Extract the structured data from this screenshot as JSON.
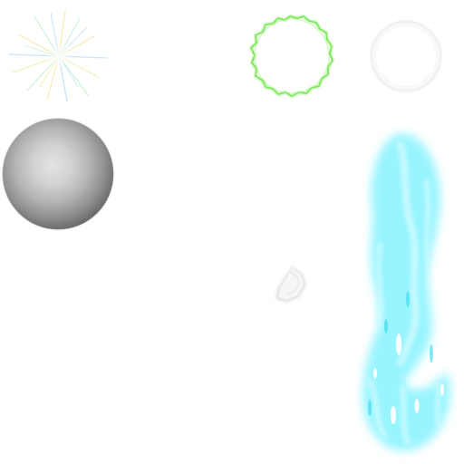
{
  "sheet": {
    "description_visible_text": "",
    "background_color": "#ffffff"
  },
  "sprites": [
    {
      "name": "sparkle-burst",
      "colors": [
        "#f4f1b0",
        "#c4f0d0",
        "#b8e0f8",
        "#f6e7a6"
      ]
    },
    {
      "name": "green-ring",
      "colors": [
        "#7de85f",
        "#c8f7b2"
      ]
    },
    {
      "name": "faint-white-ring",
      "colors": [
        "#f2f2f2"
      ]
    },
    {
      "name": "gray-sphere",
      "colors": [
        "#e4e4e4",
        "#161616"
      ]
    },
    {
      "name": "white-shard",
      "colors": [
        "#f4f4f4",
        "#d8d8d8"
      ]
    },
    {
      "name": "cyan-flame-column",
      "colors": [
        "#7ff2ff",
        "#c9fbff",
        "#35d8f0"
      ]
    }
  ]
}
